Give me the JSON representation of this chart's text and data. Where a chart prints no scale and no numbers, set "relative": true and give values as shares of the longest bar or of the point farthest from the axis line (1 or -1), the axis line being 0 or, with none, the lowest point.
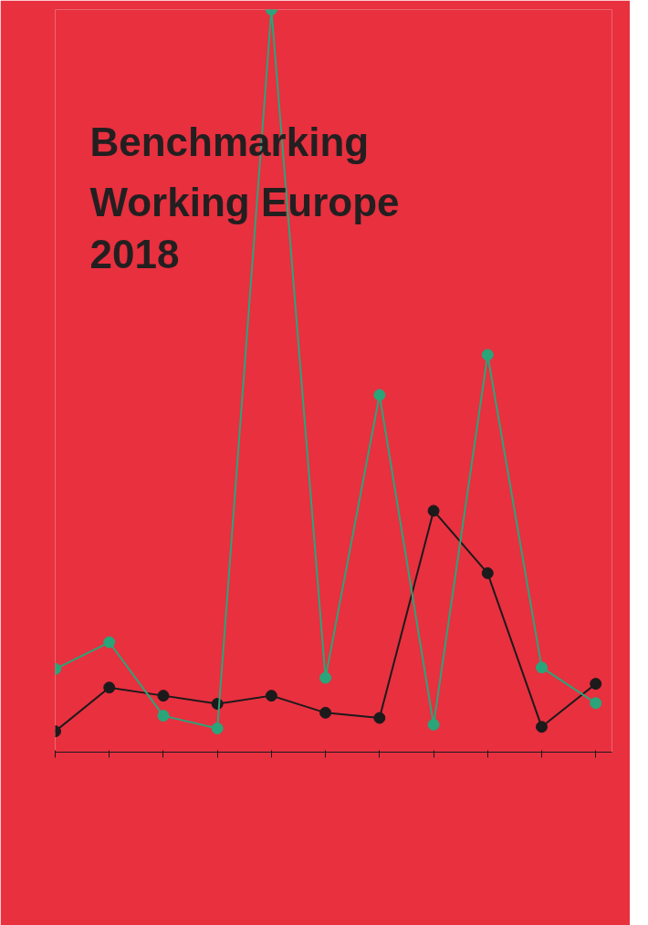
{
  "chart_data": {
    "type": "line",
    "title": "Benchmarking\nWorking Europe\n2018",
    "relative": true,
    "categories": [
      null,
      null,
      null,
      null,
      null,
      null,
      null,
      null,
      null,
      null,
      null
    ],
    "series": [
      {
        "color": "#1c1a1b",
        "values": [
          0.028,
          0.087,
          0.076,
          0.065,
          0.076,
          0.053,
          0.046,
          0.325,
          0.241,
          0.034,
          0.092
        ]
      },
      {
        "color": "#2aa57a",
        "values": [
          0.112,
          0.148,
          0.049,
          0.032,
          1,
          0.1,
          0.481,
          0.037,
          0.535,
          0.114,
          0.066
        ]
      }
    ],
    "marker": "circle",
    "grid": false
  }
}
